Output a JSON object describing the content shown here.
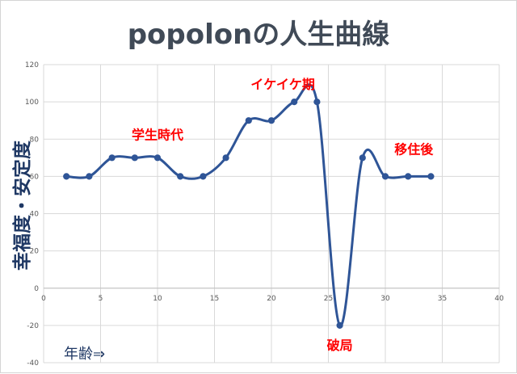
{
  "chart_data": {
    "type": "line",
    "title": "popolonの人生曲線",
    "xlabel": "年齢⇒",
    "ylabel": "幸福度・安定度",
    "xlim": [
      0,
      40
    ],
    "ylim": [
      -40,
      120
    ],
    "xticks": [
      0,
      5,
      10,
      15,
      20,
      25,
      30,
      35,
      40
    ],
    "yticks": [
      -40,
      -20,
      0,
      20,
      40,
      60,
      80,
      100,
      120
    ],
    "grid": true,
    "smooth": true,
    "series": [
      {
        "x": [
          2,
          4,
          6,
          8,
          10,
          12,
          14,
          16,
          18,
          20,
          22,
          24,
          26,
          28,
          30,
          32,
          34
        ],
        "y": [
          60,
          60,
          70,
          70,
          70,
          60,
          60,
          70,
          90,
          90,
          100,
          100,
          -20,
          70,
          60,
          60,
          60
        ]
      }
    ],
    "annotations": [
      {
        "text": "学生時代",
        "x": 10,
        "y": 80
      },
      {
        "text": "イケイケ期",
        "x": 21,
        "y": 107
      },
      {
        "text": "破局",
        "x": 26,
        "y": -33
      },
      {
        "text": "移住後",
        "x": 32.5,
        "y": 72
      }
    ]
  },
  "colors": {
    "line": "#2f5597",
    "annotation": "#ff0000",
    "title": "#404a57",
    "axis_label": "#1f3864",
    "grid": "#d9d9d9"
  }
}
